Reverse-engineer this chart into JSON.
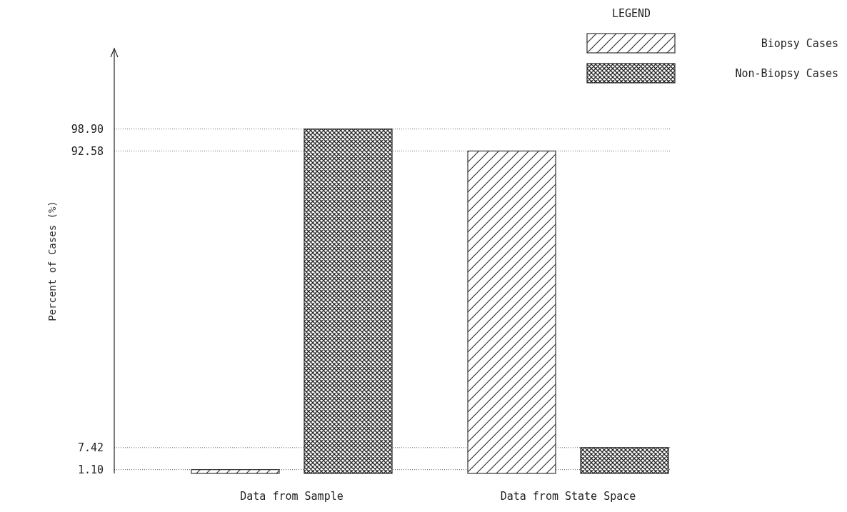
{
  "chart_data": {
    "type": "bar",
    "ylabel": "Percent of Cases (%)",
    "legend_title": "LEGEND",
    "legend": "top right",
    "grid": "y",
    "categories": [
      "Data from Sample",
      "Data from State Space"
    ],
    "series": [
      {
        "name": "Biopsy Cases",
        "color": "#333333",
        "values": [
          1.1,
          92.58
        ]
      },
      {
        "name": "Non-Biopsy Cases",
        "color": "#222222",
        "values": [
          98.9,
          7.42
        ]
      }
    ],
    "ylim": [
      0,
      122
    ],
    "yticks": [
      {
        "value": 1.1,
        "label": "1.10"
      },
      {
        "value": 7.42,
        "label": "7.42"
      },
      {
        "value": 92.58,
        "label": "92.58"
      },
      {
        "value": 98.9,
        "label": "98.90"
      }
    ]
  }
}
